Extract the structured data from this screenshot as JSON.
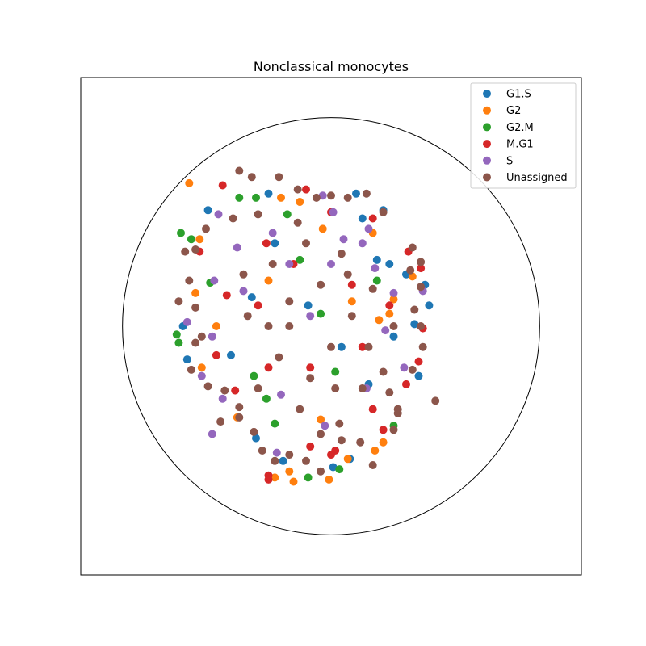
{
  "chart_data": {
    "type": "scatter",
    "title": "Nonclassical monocytes",
    "xlabel": "",
    "ylabel": "",
    "xlim": [
      -1.2,
      1.2
    ],
    "ylim": [
      -1.2,
      1.2
    ],
    "grid": false,
    "axes_ticks": false,
    "reference_circle": {
      "center": [
        0,
        0
      ],
      "radius": 1
    },
    "legend": {
      "placement": "top-right"
    },
    "colors": {
      "G1.S": "#1f77b4",
      "G2": "#ff7f0e",
      "G2.M": "#2ca02c",
      "M.G1": "#d62728",
      "S": "#9467bd",
      "Unassigned": "#8c564b"
    },
    "series": [
      {
        "name": "G1.S",
        "points": [
          [
            0.47,
            0.1
          ],
          [
            0.4,
            0.01
          ],
          [
            0.45,
            0.2
          ],
          [
            0.28,
            0.3
          ],
          [
            0.15,
            0.52
          ],
          [
            0.12,
            0.64
          ],
          [
            0.25,
            0.56
          ],
          [
            0.36,
            0.25
          ],
          [
            0.42,
            -0.24
          ],
          [
            0.09,
            -0.64
          ],
          [
            0.01,
            -0.68
          ],
          [
            -0.23,
            -0.65
          ],
          [
            -0.36,
            -0.54
          ],
          [
            -0.48,
            -0.14
          ],
          [
            -0.69,
            -0.16
          ],
          [
            -0.71,
            0.0
          ],
          [
            -0.38,
            0.14
          ],
          [
            -0.27,
            0.4
          ],
          [
            -0.59,
            0.56
          ],
          [
            -0.3,
            0.64
          ],
          [
            0.22,
            0.32
          ],
          [
            0.3,
            -0.05
          ],
          [
            0.18,
            -0.28
          ],
          [
            -0.11,
            0.1
          ],
          [
            0.05,
            -0.1
          ]
        ]
      },
      {
        "name": "G2",
        "points": [
          [
            0.3,
            0.13
          ],
          [
            0.28,
            0.06
          ],
          [
            -0.68,
            0.69
          ],
          [
            -0.63,
            0.42
          ],
          [
            -0.65,
            0.16
          ],
          [
            -0.55,
            0.0
          ],
          [
            -0.45,
            -0.44
          ],
          [
            -0.62,
            -0.2
          ],
          [
            -0.2,
            -0.7
          ],
          [
            -0.27,
            -0.73
          ],
          [
            -0.18,
            -0.75
          ],
          [
            -0.01,
            -0.74
          ],
          [
            0.08,
            -0.64
          ],
          [
            0.21,
            -0.6
          ],
          [
            0.25,
            -0.56
          ],
          [
            -0.24,
            0.62
          ],
          [
            0.2,
            0.45
          ],
          [
            -0.04,
            0.47
          ],
          [
            -0.15,
            0.6
          ],
          [
            0.1,
            0.12
          ],
          [
            -0.3,
            0.22
          ],
          [
            -0.05,
            -0.45
          ],
          [
            0.39,
            0.24
          ],
          [
            0.23,
            0.03
          ]
        ]
      },
      {
        "name": "G2.M",
        "points": [
          [
            -0.72,
            0.45
          ],
          [
            -0.74,
            -0.04
          ],
          [
            -0.73,
            -0.08
          ],
          [
            -0.44,
            0.62
          ],
          [
            -0.36,
            0.62
          ],
          [
            -0.21,
            0.54
          ],
          [
            -0.58,
            0.21
          ],
          [
            -0.27,
            -0.47
          ],
          [
            -0.37,
            -0.24
          ],
          [
            -0.11,
            -0.73
          ],
          [
            -0.31,
            -0.35
          ],
          [
            0.04,
            -0.69
          ],
          [
            0.3,
            -0.48
          ],
          [
            -0.67,
            0.42
          ],
          [
            -0.15,
            0.32
          ],
          [
            0.02,
            -0.22
          ],
          [
            0.22,
            0.22
          ],
          [
            -0.05,
            0.06
          ]
        ]
      },
      {
        "name": "G2.M",
        "points": []
      },
      {
        "name": "M.G1",
        "points": [
          [
            -0.52,
            0.68
          ],
          [
            -0.63,
            0.36
          ],
          [
            -0.55,
            -0.14
          ],
          [
            -0.46,
            -0.31
          ],
          [
            -0.5,
            0.15
          ],
          [
            -0.3,
            -0.2
          ],
          [
            -0.31,
            0.4
          ],
          [
            -0.12,
            0.66
          ],
          [
            0.0,
            0.55
          ],
          [
            0.2,
            0.52
          ],
          [
            0.37,
            0.36
          ],
          [
            0.43,
            0.28
          ],
          [
            0.44,
            -0.01
          ],
          [
            0.42,
            -0.17
          ],
          [
            0.36,
            -0.28
          ],
          [
            0.2,
            -0.4
          ],
          [
            0.25,
            -0.5
          ],
          [
            0.02,
            -0.6
          ],
          [
            -0.3,
            -0.74
          ],
          [
            -0.3,
            -0.72
          ],
          [
            -0.1,
            -0.58
          ],
          [
            0.0,
            -0.62
          ],
          [
            -0.18,
            0.3
          ],
          [
            0.1,
            0.2
          ],
          [
            0.15,
            -0.1
          ],
          [
            -0.1,
            -0.2
          ],
          [
            0.28,
            0.1
          ],
          [
            -0.35,
            0.1
          ]
        ]
      },
      {
        "name": "S",
        "points": [
          [
            -0.54,
            0.54
          ],
          [
            -0.69,
            0.02
          ],
          [
            -0.57,
            -0.05
          ],
          [
            -0.62,
            -0.24
          ],
          [
            -0.57,
            -0.52
          ],
          [
            -0.56,
            0.22
          ],
          [
            -0.45,
            0.38
          ],
          [
            -0.28,
            0.45
          ],
          [
            -0.42,
            0.17
          ],
          [
            -0.04,
            0.63
          ],
          [
            0.01,
            0.55
          ],
          [
            0.06,
            0.42
          ],
          [
            0.18,
            0.47
          ],
          [
            0.3,
            0.16
          ],
          [
            0.44,
            0.17
          ],
          [
            0.21,
            0.28
          ],
          [
            -0.24,
            -0.33
          ],
          [
            -0.52,
            -0.35
          ],
          [
            -0.26,
            -0.61
          ],
          [
            -0.03,
            -0.48
          ],
          [
            0.17,
            -0.3
          ],
          [
            0.26,
            -0.02
          ],
          [
            0.0,
            0.3
          ],
          [
            0.15,
            0.4
          ],
          [
            -0.2,
            0.3
          ],
          [
            -0.1,
            0.05
          ],
          [
            0.35,
            -0.2
          ]
        ]
      },
      {
        "name": "Unassigned",
        "points": [
          [
            -0.44,
            0.75
          ],
          [
            -0.38,
            0.72
          ],
          [
            -0.25,
            0.72
          ],
          [
            -0.16,
            0.66
          ],
          [
            -0.07,
            0.62
          ],
          [
            0.0,
            0.63
          ],
          [
            0.08,
            0.62
          ],
          [
            0.17,
            0.64
          ],
          [
            0.25,
            0.55
          ],
          [
            0.39,
            0.38
          ],
          [
            0.38,
            0.27
          ],
          [
            0.43,
            0.31
          ],
          [
            0.43,
            0.19
          ],
          [
            0.4,
            0.08
          ],
          [
            0.43,
            0.0
          ],
          [
            0.44,
            -0.1
          ],
          [
            0.5,
            -0.36
          ],
          [
            0.39,
            -0.21
          ],
          [
            0.28,
            -0.32
          ],
          [
            0.32,
            -0.42
          ],
          [
            0.3,
            -0.5
          ],
          [
            0.14,
            -0.56
          ],
          [
            0.2,
            -0.67
          ],
          [
            0.05,
            -0.55
          ],
          [
            -0.05,
            -0.52
          ],
          [
            -0.12,
            -0.65
          ],
          [
            -0.2,
            -0.62
          ],
          [
            -0.27,
            -0.65
          ],
          [
            -0.33,
            -0.6
          ],
          [
            -0.37,
            -0.51
          ],
          [
            -0.44,
            -0.44
          ],
          [
            -0.53,
            -0.46
          ],
          [
            -0.44,
            -0.39
          ],
          [
            -0.51,
            -0.31
          ],
          [
            -0.59,
            -0.29
          ],
          [
            -0.67,
            -0.21
          ],
          [
            -0.65,
            -0.08
          ],
          [
            -0.62,
            -0.05
          ],
          [
            -0.65,
            0.09
          ],
          [
            -0.73,
            0.12
          ],
          [
            -0.68,
            0.22
          ],
          [
            -0.65,
            0.37
          ],
          [
            -0.7,
            0.36
          ],
          [
            -0.6,
            0.47
          ],
          [
            -0.47,
            0.52
          ],
          [
            -0.35,
            0.54
          ],
          [
            -0.16,
            0.5
          ],
          [
            0.05,
            0.35
          ],
          [
            -0.28,
            0.3
          ],
          [
            -0.4,
            0.05
          ],
          [
            -0.2,
            0.12
          ],
          [
            -0.05,
            0.2
          ],
          [
            0.1,
            0.05
          ],
          [
            0.18,
            -0.1
          ],
          [
            0.0,
            -0.1
          ],
          [
            -0.1,
            -0.25
          ],
          [
            -0.25,
            -0.15
          ],
          [
            -0.35,
            -0.3
          ],
          [
            0.02,
            -0.3
          ],
          [
            0.15,
            -0.3
          ],
          [
            0.25,
            -0.22
          ],
          [
            0.3,
            0.0
          ],
          [
            0.2,
            0.18
          ],
          [
            -0.15,
            -0.4
          ],
          [
            -0.05,
            -0.7
          ],
          [
            0.04,
            -0.47
          ],
          [
            -0.2,
            0.0
          ],
          [
            0.08,
            0.25
          ],
          [
            -0.3,
            0.0
          ],
          [
            0.32,
            -0.4
          ],
          [
            -0.42,
            0.25
          ],
          [
            -0.12,
            0.4
          ]
        ]
      }
    ]
  }
}
